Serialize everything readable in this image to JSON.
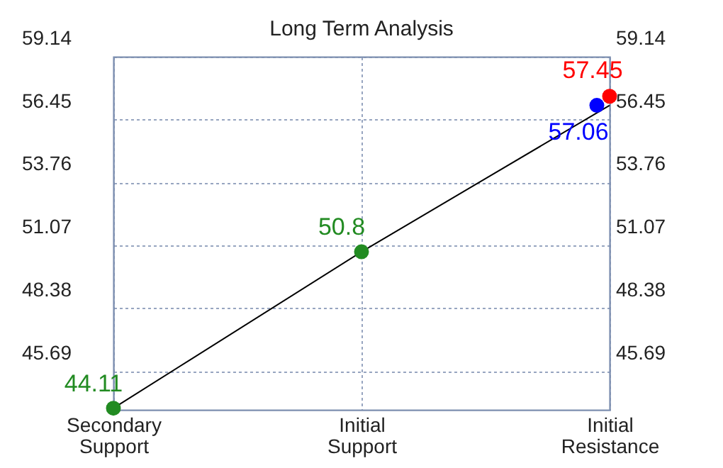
{
  "chart_data": {
    "type": "line",
    "title": "Long Term Analysis",
    "categories": [
      "Secondary Support",
      "Initial Support",
      "Initial Resistance"
    ],
    "series": [
      {
        "color": "#000000",
        "marker": "none",
        "values": [
          44.11,
          50.8,
          57.06
        ]
      },
      {
        "type": "scatter",
        "color": "#228b22",
        "marker": "circle",
        "data_labels": true,
        "values": [
          44.11,
          50.8,
          null
        ]
      },
      {
        "type": "scatter",
        "color": "#0000ff",
        "marker": "circle",
        "data_labels": true,
        "values": [
          null,
          null,
          57.06
        ]
      },
      {
        "type": "scatter",
        "color": "#ff0000",
        "marker": "circle",
        "data_labels": true,
        "values": [
          null,
          null,
          57.45
        ]
      }
    ],
    "ylim": [
      44.04,
      59.14
    ],
    "yticks": [
      45.69,
      48.38,
      51.07,
      53.76,
      56.45,
      59.14
    ],
    "y2lim": [
      44.04,
      59.14
    ],
    "y2ticks": [
      45.69,
      48.38,
      51.07,
      53.76,
      56.45,
      59.14
    ],
    "grid": true
  }
}
